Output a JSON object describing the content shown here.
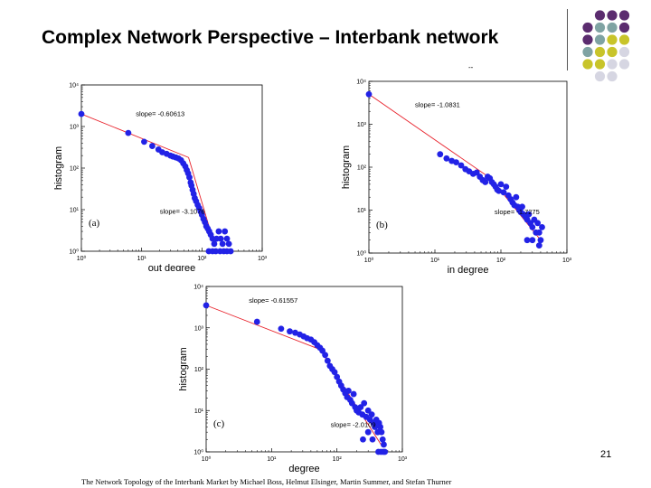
{
  "slide": {
    "title": "Complex Network Perspective – Interbank network",
    "dash": "--",
    "page_number": "21",
    "citation": "The Network Topology of the Interbank Market by Michael Boss, Helmut Elsinger, Martin Summer, and Stefan Thurner"
  },
  "decor": {
    "palette": {
      "purple": "#5b2c6f",
      "teal": "#7fa3a3",
      "olive": "#c8c42a",
      "grey": "#d6d6e2"
    },
    "rows": [
      [
        "purple",
        "purple",
        "purple"
      ],
      [
        "purple",
        "teal",
        "teal",
        "purple"
      ],
      [
        "purple",
        "teal",
        "olive",
        "olive"
      ],
      [
        "teal",
        "olive",
        "olive",
        "grey"
      ],
      [
        "olive",
        "olive",
        "grey",
        "grey"
      ],
      [
        "grey",
        "grey"
      ]
    ]
  },
  "chart_data": [
    {
      "type": "scatter",
      "panel_label": "(a)",
      "xlabel": "out degree",
      "ylabel": "histogram",
      "xscale": "log",
      "yscale": "log",
      "xlim": [
        1,
        1000
      ],
      "ylim": [
        1,
        10000
      ],
      "xticks": [
        "10⁰",
        "10¹",
        "10²",
        "10³"
      ],
      "yticks": [
        "10⁰",
        "10¹",
        "10²",
        "10³",
        "10⁴"
      ],
      "annotations": [
        {
          "text": "slope= -0.60613",
          "x": 8,
          "y": 1800
        },
        {
          "text": "slope= -3.1076",
          "x": 20,
          "y": 8
        }
      ],
      "fit_lines": [
        {
          "x": [
            1,
            60
          ],
          "y": [
            2000,
            180
          ]
        },
        {
          "x": [
            60,
            160
          ],
          "y": [
            180,
            1.5
          ]
        }
      ],
      "points": [
        [
          1,
          2000
        ],
        [
          6,
          700
        ],
        [
          11,
          430
        ],
        [
          15,
          340
        ],
        [
          19,
          280
        ],
        [
          22,
          240
        ],
        [
          26,
          220
        ],
        [
          30,
          200
        ],
        [
          33,
          190
        ],
        [
          37,
          180
        ],
        [
          41,
          170
        ],
        [
          45,
          155
        ],
        [
          49,
          130
        ],
        [
          53,
          110
        ],
        [
          56,
          90
        ],
        [
          59,
          75
        ],
        [
          62,
          60
        ],
        [
          65,
          45
        ],
        [
          67,
          38
        ],
        [
          70,
          30
        ],
        [
          73,
          24
        ],
        [
          76,
          19
        ],
        [
          80,
          16
        ],
        [
          85,
          13
        ],
        [
          90,
          11
        ],
        [
          95,
          9
        ],
        [
          100,
          7.5
        ],
        [
          106,
          6
        ],
        [
          112,
          5
        ],
        [
          118,
          4
        ],
        [
          125,
          3.5
        ],
        [
          132,
          3
        ],
        [
          140,
          2.5
        ],
        [
          150,
          2
        ],
        [
          160,
          1.5
        ],
        [
          175,
          2
        ],
        [
          190,
          3
        ],
        [
          205,
          2
        ],
        [
          220,
          1.5
        ],
        [
          240,
          3
        ],
        [
          260,
          2
        ],
        [
          280,
          1.5
        ],
        [
          130,
          1
        ],
        [
          150,
          1
        ],
        [
          170,
          1
        ],
        [
          200,
          1
        ],
        [
          230,
          1
        ],
        [
          260,
          1
        ],
        [
          300,
          1
        ]
      ]
    },
    {
      "type": "scatter",
      "panel_label": "(b)",
      "xlabel": "in degree",
      "ylabel": "histogram",
      "xscale": "log",
      "yscale": "log",
      "xlim": [
        1,
        1000
      ],
      "ylim": [
        1,
        10000
      ],
      "xticks": [
        "10⁰",
        "10¹",
        "10²",
        "10³"
      ],
      "yticks": [
        "10⁰",
        "10¹",
        "10²",
        "10³",
        "10⁴"
      ],
      "annotations": [
        {
          "text": "slope= -1.0831",
          "x": 5,
          "y": 2500
        },
        {
          "text": "slope= -1.7275",
          "x": 80,
          "y": 8
        }
      ],
      "fit_lines": [
        {
          "x": [
            1,
            70
          ],
          "y": [
            5000,
            55
          ]
        },
        {
          "x": [
            70,
            400
          ],
          "y": [
            55,
            2
          ]
        }
      ],
      "points": [
        [
          1,
          5000
        ],
        [
          12,
          200
        ],
        [
          15,
          160
        ],
        [
          18,
          140
        ],
        [
          21,
          130
        ],
        [
          25,
          110
        ],
        [
          29,
          90
        ],
        [
          33,
          80
        ],
        [
          38,
          70
        ],
        [
          43,
          75
        ],
        [
          48,
          60
        ],
        [
          53,
          50
        ],
        [
          58,
          45
        ],
        [
          63,
          60
        ],
        [
          68,
          55
        ],
        [
          73,
          45
        ],
        [
          78,
          40
        ],
        [
          83,
          35
        ],
        [
          88,
          30
        ],
        [
          93,
          28
        ],
        [
          100,
          40
        ],
        [
          110,
          26
        ],
        [
          120,
          35
        ],
        [
          130,
          22
        ],
        [
          140,
          18
        ],
        [
          150,
          15
        ],
        [
          160,
          13
        ],
        [
          170,
          20
        ],
        [
          180,
          12
        ],
        [
          190,
          10
        ],
        [
          200,
          9
        ],
        [
          210,
          12
        ],
        [
          220,
          8
        ],
        [
          235,
          7
        ],
        [
          250,
          6
        ],
        [
          265,
          8
        ],
        [
          280,
          5
        ],
        [
          300,
          4
        ],
        [
          320,
          6
        ],
        [
          340,
          3
        ],
        [
          360,
          5
        ],
        [
          380,
          3
        ],
        [
          400,
          2
        ],
        [
          420,
          4
        ],
        [
          250,
          2
        ],
        [
          300,
          2
        ],
        [
          380,
          1.5
        ]
      ]
    },
    {
      "type": "scatter",
      "panel_label": "(c)",
      "xlabel": "degree",
      "ylabel": "histogram",
      "xscale": "log",
      "yscale": "log",
      "xlim": [
        1,
        1000
      ],
      "ylim": [
        1,
        10000
      ],
      "xticks": [
        "10⁰",
        "10¹",
        "10²",
        "10³"
      ],
      "yticks": [
        "10⁰",
        "10¹",
        "10²",
        "10³",
        "10⁴"
      ],
      "annotations": [
        {
          "text": "slope= -0.61557",
          "x": 4.5,
          "y": 4000
        },
        {
          "text": "slope= -2.0109",
          "x": 80,
          "y": 4
        }
      ],
      "fit_lines": [
        {
          "x": [
            1,
            55
          ],
          "y": [
            3500,
            300
          ]
        },
        {
          "x": [
            55,
            500
          ],
          "y": [
            300,
            1.3
          ]
        }
      ],
      "points": [
        [
          1,
          3500
        ],
        [
          6,
          1400
        ],
        [
          14,
          950
        ],
        [
          19,
          820
        ],
        [
          23,
          760
        ],
        [
          27,
          690
        ],
        [
          31,
          620
        ],
        [
          35,
          560
        ],
        [
          40,
          520
        ],
        [
          45,
          450
        ],
        [
          50,
          380
        ],
        [
          55,
          330
        ],
        [
          60,
          280
        ],
        [
          66,
          220
        ],
        [
          72,
          160
        ],
        [
          78,
          120
        ],
        [
          85,
          100
        ],
        [
          92,
          85
        ],
        [
          100,
          65
        ],
        [
          108,
          50
        ],
        [
          116,
          40
        ],
        [
          125,
          32
        ],
        [
          134,
          26
        ],
        [
          143,
          21
        ],
        [
          150,
          30
        ],
        [
          160,
          18
        ],
        [
          170,
          15
        ],
        [
          180,
          25
        ],
        [
          190,
          12
        ],
        [
          200,
          10
        ],
        [
          215,
          9
        ],
        [
          230,
          12
        ],
        [
          245,
          8
        ],
        [
          260,
          15
        ],
        [
          280,
          7
        ],
        [
          300,
          10
        ],
        [
          320,
          6
        ],
        [
          340,
          8
        ],
        [
          360,
          5
        ],
        [
          380,
          4
        ],
        [
          400,
          6
        ],
        [
          420,
          3
        ],
        [
          440,
          5
        ],
        [
          460,
          4
        ],
        [
          480,
          3
        ],
        [
          500,
          2
        ],
        [
          520,
          1.5
        ],
        [
          250,
          2
        ],
        [
          300,
          3
        ],
        [
          350,
          2
        ],
        [
          430,
          1
        ],
        [
          470,
          1
        ],
        [
          510,
          1
        ],
        [
          540,
          1
        ]
      ]
    }
  ]
}
